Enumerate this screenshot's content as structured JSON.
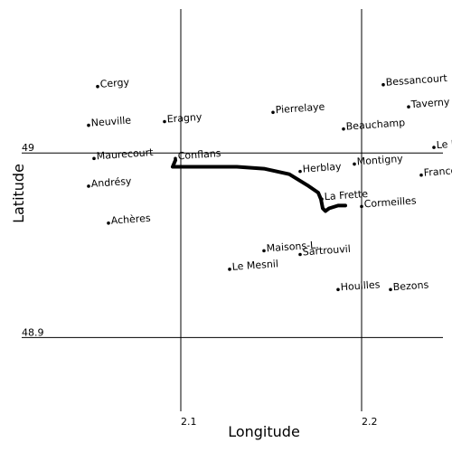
{
  "map": {
    "xlabel": "Longitude",
    "ylabel": "Latitude",
    "xlim": [
      2.0,
      2.245
    ],
    "ylim": [
      48.86,
      49.078
    ],
    "x_gridlines": [
      2.1,
      2.2
    ],
    "y_gridlines": [
      49.0,
      48.9
    ],
    "x_tick_labels": [
      "2.1",
      "2.2"
    ],
    "y_tick_labels": [
      "49",
      "48.9"
    ],
    "line_color": "#000000",
    "marker": "small black dot",
    "places": [
      {
        "name": "Cergy",
        "lon": 2.054,
        "lat": 49.036
      },
      {
        "name": "Neuville",
        "lon": 2.049,
        "lat": 49.015
      },
      {
        "name": "Eragny",
        "lon": 2.091,
        "lat": 49.017
      },
      {
        "name": "Pierrelaye",
        "lon": 2.151,
        "lat": 49.022
      },
      {
        "name": "Bessancourt",
        "lon": 2.212,
        "lat": 49.037
      },
      {
        "name": "Taverny",
        "lon": 2.226,
        "lat": 49.025
      },
      {
        "name": "Beauchamp",
        "lon": 2.19,
        "lat": 49.013
      },
      {
        "name": "Le P",
        "lon": 2.24,
        "lat": 49.003
      },
      {
        "name": "Maurecourt",
        "lon": 2.052,
        "lat": 48.997
      },
      {
        "name": "Conflans",
        "lon": 2.097,
        "lat": 48.997
      },
      {
        "name": "Herblay",
        "lon": 2.166,
        "lat": 48.99
      },
      {
        "name": "Montigny",
        "lon": 2.196,
        "lat": 48.994
      },
      {
        "name": "Franco",
        "lon": 2.233,
        "lat": 48.988
      },
      {
        "name": "Andrésy",
        "lon": 2.049,
        "lat": 48.982
      },
      {
        "name": "La Frette",
        "lon": 2.178,
        "lat": 48.975
      },
      {
        "name": "Cormeilles",
        "lon": 2.2,
        "lat": 48.971
      },
      {
        "name": "Achères",
        "lon": 2.06,
        "lat": 48.962
      },
      {
        "name": "Maisons-L.",
        "lon": 2.146,
        "lat": 48.947
      },
      {
        "name": "Sartrouvil",
        "lon": 2.166,
        "lat": 48.945
      },
      {
        "name": "Le Mesnil",
        "lon": 2.127,
        "lat": 48.937
      },
      {
        "name": "Houilles",
        "lon": 2.187,
        "lat": 48.926
      },
      {
        "name": "Bezons",
        "lon": 2.216,
        "lat": 48.926
      }
    ],
    "track": [
      {
        "lon": 2.097,
        "lat": 48.996
      },
      {
        "lon": 2.0955,
        "lat": 48.9925
      },
      {
        "lon": 2.101,
        "lat": 48.9925
      },
      {
        "lon": 2.115,
        "lat": 48.9925
      },
      {
        "lon": 2.131,
        "lat": 48.9925
      },
      {
        "lon": 2.146,
        "lat": 48.9915
      },
      {
        "lon": 2.16,
        "lat": 48.9885
      },
      {
        "lon": 2.17,
        "lat": 48.9825
      },
      {
        "lon": 2.176,
        "lat": 48.9785
      },
      {
        "lon": 2.1775,
        "lat": 48.975
      },
      {
        "lon": 2.1785,
        "lat": 48.97
      },
      {
        "lon": 2.18,
        "lat": 48.9685
      },
      {
        "lon": 2.182,
        "lat": 48.97
      },
      {
        "lon": 2.187,
        "lat": 48.9715
      },
      {
        "lon": 2.191,
        "lat": 48.9715
      }
    ]
  }
}
